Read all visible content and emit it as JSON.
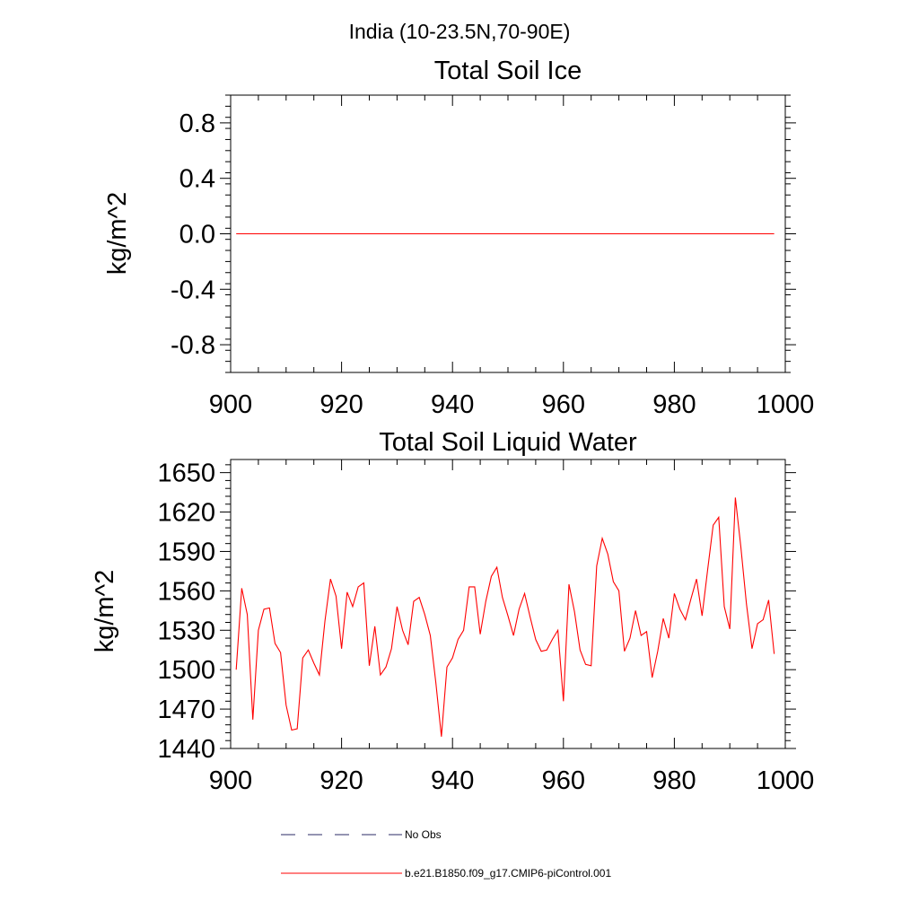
{
  "figure_title": "India (10-23.5N,70-90E)",
  "colors": {
    "series": "#ff0000",
    "obs": "#2a2a66",
    "axis": "#000000"
  },
  "legend": {
    "entries": [
      {
        "label": "No Obs",
        "style": "dashed",
        "color": "#2a2a66"
      },
      {
        "label": "b.e21.B1850.f09_g17.CMIP6-piControl.001",
        "style": "solid",
        "color": "#ff0000"
      }
    ]
  },
  "chart_data": [
    {
      "type": "line",
      "title": "Total Soil Ice",
      "xlabel": "",
      "ylabel": "kg/m^2",
      "xlim": [
        900,
        1000
      ],
      "ylim": [
        -1.0,
        1.0
      ],
      "xticks": [
        900,
        920,
        940,
        960,
        980,
        1000
      ],
      "yticks": [
        -0.8,
        -0.4,
        0.0,
        0.4,
        0.8
      ],
      "yticklabels": [
        "-0.8",
        "-0.4",
        "0.0",
        "0.4",
        "0.8"
      ],
      "series": [
        {
          "name": "b.e21.B1850.f09_g17.CMIP6-piControl.001",
          "x": [
            901,
            998
          ],
          "values": [
            0,
            0
          ]
        }
      ]
    },
    {
      "type": "line",
      "title": "Total Soil Liquid Water",
      "xlabel": "",
      "ylabel": "kg/m^2",
      "xlim": [
        900,
        1000
      ],
      "ylim": [
        1440,
        1660
      ],
      "xticks": [
        900,
        920,
        940,
        960,
        980,
        1000
      ],
      "yticks": [
        1440,
        1470,
        1500,
        1530,
        1560,
        1590,
        1620,
        1650
      ],
      "yticklabels": [
        "1440",
        "1470",
        "1500",
        "1530",
        "1560",
        "1590",
        "1620",
        "1650"
      ],
      "series": [
        {
          "name": "b.e21.B1850.f09_g17.CMIP6-piControl.001",
          "x_start": 901,
          "values": [
            1500,
            1562,
            1542,
            1462,
            1530,
            1546,
            1547,
            1520,
            1513,
            1473,
            1454,
            1455,
            1509,
            1515,
            1505,
            1496,
            1537,
            1569,
            1556,
            1516,
            1559,
            1548,
            1563,
            1566,
            1503,
            1533,
            1496,
            1502,
            1516,
            1548,
            1530,
            1519,
            1552,
            1555,
            1542,
            1526,
            1490,
            1449,
            1502,
            1509,
            1523,
            1530,
            1563,
            1563,
            1527,
            1552,
            1571,
            1578,
            1555,
            1541,
            1526,
            1546,
            1558,
            1540,
            1523,
            1514,
            1515,
            1523,
            1530,
            1476,
            1565,
            1544,
            1515,
            1504,
            1503,
            1579,
            1600,
            1588,
            1567,
            1560,
            1514,
            1524,
            1545,
            1526,
            1529,
            1494,
            1514,
            1539,
            1524,
            1558,
            1546,
            1538,
            1554,
            1569,
            1541,
            1576,
            1610,
            1616,
            1548,
            1531,
            1631,
            1593,
            1550,
            1516,
            1535,
            1538,
            1553,
            1512
          ]
        }
      ]
    }
  ]
}
